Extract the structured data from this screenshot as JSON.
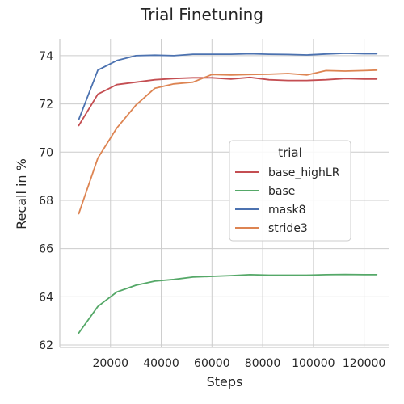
{
  "chart_data": {
    "type": "line",
    "title": "Trial Finetuning",
    "xlabel": "Steps",
    "ylabel": "Recall in %",
    "xlim": [
      0,
      130000
    ],
    "ylim": [
      61.9,
      74.7
    ],
    "xticks": [
      20000,
      40000,
      60000,
      80000,
      100000,
      120000
    ],
    "xtick_labels": [
      "20000",
      "40000",
      "60000",
      "80000",
      "100000",
      "120000"
    ],
    "yticks": [
      62,
      64,
      66,
      68,
      70,
      72,
      74
    ],
    "ytick_labels": [
      "62",
      "64",
      "66",
      "68",
      "70",
      "72",
      "74"
    ],
    "grid": true,
    "legend": {
      "title": "trial",
      "placement": "center-right",
      "entries": [
        "base_highLR",
        "base",
        "mask8",
        "stride3"
      ]
    },
    "x": [
      7500,
      15000,
      22500,
      30000,
      37500,
      45000,
      52500,
      60000,
      67500,
      75000,
      82500,
      90000,
      97500,
      105000,
      112500,
      120000,
      125000
    ],
    "series": [
      {
        "name": "base_highLR",
        "color": "#c44e52",
        "values": [
          71.1,
          72.4,
          72.8,
          72.9,
          73.0,
          73.05,
          73.08,
          73.08,
          73.03,
          73.1,
          73.0,
          72.97,
          72.97,
          73.0,
          73.05,
          73.03,
          73.03
        ]
      },
      {
        "name": "base",
        "color": "#55a868",
        "values": [
          62.5,
          63.6,
          64.2,
          64.48,
          64.65,
          64.72,
          64.82,
          64.85,
          64.88,
          64.92,
          64.9,
          64.9,
          64.9,
          64.92,
          64.93,
          64.92,
          64.92
        ]
      },
      {
        "name": "mask8",
        "color": "#4c72b0",
        "values": [
          71.35,
          73.4,
          73.8,
          74.0,
          74.02,
          74.0,
          74.06,
          74.06,
          74.06,
          74.08,
          74.06,
          74.05,
          74.03,
          74.07,
          74.1,
          74.08,
          74.08
        ]
      },
      {
        "name": "stride3",
        "color": "#dd8452",
        "values": [
          67.45,
          69.75,
          71.0,
          71.95,
          72.65,
          72.83,
          72.9,
          73.22,
          73.2,
          73.22,
          73.23,
          73.26,
          73.2,
          73.38,
          73.36,
          73.38,
          73.4
        ]
      }
    ]
  }
}
